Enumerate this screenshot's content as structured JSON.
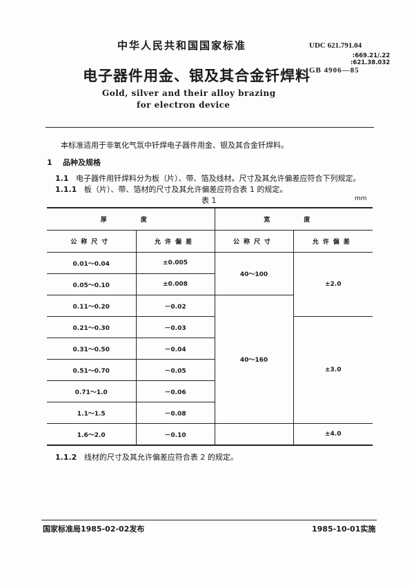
{
  "header": {
    "standard_type": "中华人民共和国国家标准",
    "title": "电子器件用金、银及其合金钎焊料",
    "english_title_line1": "Gold, silver and their alloy brazing",
    "english_title_line2": "for electron device",
    "udc": "UDC 621.791.04",
    "udc_line2": ":669.21/.22",
    "udc_line3": ":621.38.032",
    "gb_number": "GB 4906—85"
  },
  "body": {
    "scope": "本标准适用于非氧化气氛中钎焊电子器件用金、银及其合金钎焊料。",
    "section1_num": "1",
    "section1_title": "品种及规格",
    "s1_1_num": "1.1",
    "s1_1_text": "电子器件用钎焊料分为板（片）、带、箔及线材。尺寸及其允许偏差应符合下列规定。",
    "s1_1_1_num": "1.1.1",
    "s1_1_1_text": "板（片）、带、箔材的尺寸及其允许偏差应符合表 1 的规定。",
    "table_caption": "表 1",
    "unit": "mm",
    "s1_1_2_num": "1.1.2",
    "s1_1_2_text": "线材的尺寸及其允许偏差应符合表 2 的规定。"
  },
  "table": {
    "group_thickness": "厚　度",
    "group_width": "宽　度",
    "col_nominal": "公称尺寸",
    "col_tolerance": "允许偏差",
    "thickness_rows": [
      {
        "size": "0.01～0.04",
        "tol": "±0.005"
      },
      {
        "size": "0.05～0.10",
        "tol": "±0.008"
      },
      {
        "size": "0.11～0.20",
        "tol": "－0.02"
      },
      {
        "size": "0.21～0.30",
        "tol": "－0.03"
      },
      {
        "size": "0.31～0.50",
        "tol": "－0.04"
      },
      {
        "size": "0.51～0.70",
        "tol": "－0.05"
      },
      {
        "size": "0.71～1.0",
        "tol": "－0.06"
      },
      {
        "size": "1.1～1.5",
        "tol": "－0.08"
      },
      {
        "size": "1.6～2.0",
        "tol": "－0.10"
      }
    ],
    "width_sizes": [
      "40～100",
      "40～160",
      ""
    ],
    "width_tols": [
      "±2.0",
      "±3.0",
      "±4.0"
    ]
  },
  "footer": {
    "issued": "国家标准局1985-02-02发布",
    "effective": "1985-10-01实施"
  }
}
